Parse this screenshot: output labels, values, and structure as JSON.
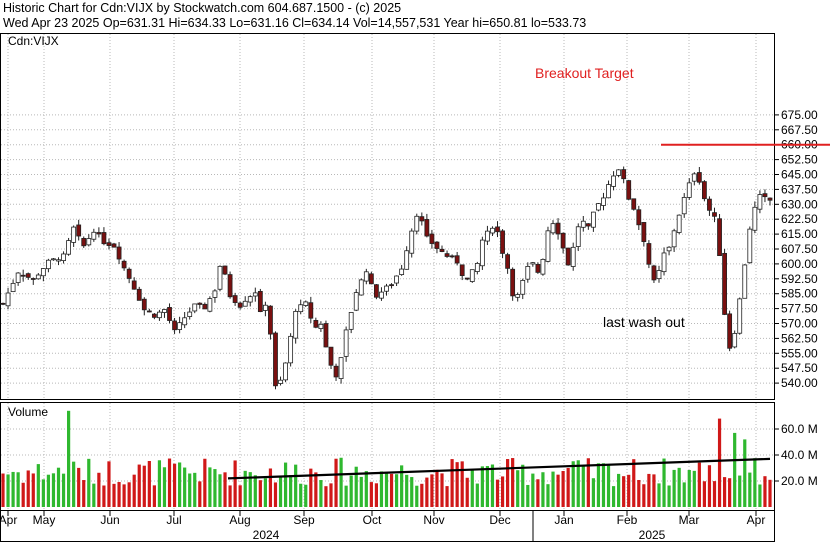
{
  "header": {
    "line1": "Historic Chart for Cdn:VIJX by Stockwatch.com 604.687.1500 - (c) 2025",
    "line2": "Wed Apr 23 2025   Op=631.31   Hi=634.33   Lo=631.16   Cl=634.14   Vol=14,557,531   Year hi=650.81   lo=533.73"
  },
  "colors": {
    "up": "#2fb82f",
    "down": "#d01818",
    "candle_body": "#7a1010",
    "grid": "#b8b8b8",
    "target_line": "#e02020",
    "trend": "#000000"
  },
  "chart_data": [
    {
      "type": "candlestick",
      "symbol_label": "Cdn:VIJX",
      "ylim": [
        532.5,
        680
      ],
      "y_ticks": [
        "675.00",
        "667.50",
        "660.00",
        "652.50",
        "645.00",
        "637.50",
        "630.00",
        "622.50",
        "615.00",
        "607.50",
        "600.00",
        "592.50",
        "585.00",
        "577.50",
        "570.00",
        "562.50",
        "555.00",
        "547.50",
        "540.00"
      ],
      "x_month_labels": [
        "Apr",
        "May",
        "Jun",
        "Jul",
        "Aug",
        "Sep",
        "Oct",
        "Nov",
        "Dec",
        "Jan",
        "Feb",
        "Mar",
        "Apr"
      ],
      "x_year_labels": [
        "2024",
        "2025"
      ],
      "close_path": [
        [
          0,
          580
        ],
        [
          3,
          596
        ],
        [
          6,
          592
        ],
        [
          9,
          601
        ],
        [
          12,
          604
        ],
        [
          14,
          618
        ],
        [
          15,
          613
        ],
        [
          16,
          609
        ],
        [
          18,
          617
        ],
        [
          20,
          611
        ],
        [
          22,
          609
        ],
        [
          24,
          598
        ],
        [
          26,
          588
        ],
        [
          28,
          577
        ],
        [
          30,
          574
        ],
        [
          32,
          577
        ],
        [
          34,
          566
        ],
        [
          36,
          573
        ],
        [
          38,
          579
        ],
        [
          40,
          578
        ],
        [
          42,
          587
        ],
        [
          43,
          599
        ],
        [
          44,
          594
        ],
        [
          45,
          584
        ],
        [
          47,
          579
        ],
        [
          48,
          582
        ],
        [
          50,
          586
        ],
        [
          51,
          575
        ],
        [
          52,
          580
        ],
        [
          53,
          565
        ],
        [
          54,
          538
        ],
        [
          55,
          541
        ],
        [
          56,
          550
        ],
        [
          57,
          563
        ],
        [
          58,
          577
        ],
        [
          60,
          580
        ],
        [
          61,
          573
        ],
        [
          62,
          568
        ],
        [
          63,
          570
        ],
        [
          64,
          558
        ],
        [
          65,
          549
        ],
        [
          66,
          544
        ],
        [
          67,
          552
        ],
        [
          68,
          566
        ],
        [
          70,
          586
        ],
        [
          72,
          597
        ],
        [
          73,
          589
        ],
        [
          74,
          584
        ],
        [
          75,
          586
        ],
        [
          77,
          590
        ],
        [
          79,
          598
        ],
        [
          81,
          617
        ],
        [
          82,
          625
        ],
        [
          83,
          621
        ],
        [
          84,
          613
        ],
        [
          86,
          608
        ],
        [
          88,
          604
        ],
        [
          90,
          601
        ],
        [
          91,
          595
        ],
        [
          92,
          592
        ],
        [
          94,
          600
        ],
        [
          95,
          612
        ],
        [
          97,
          619
        ],
        [
          98,
          616
        ],
        [
          99,
          606
        ],
        [
          100,
          598
        ],
        [
          101,
          585
        ],
        [
          102,
          584
        ],
        [
          103,
          591
        ],
        [
          104,
          598
        ],
        [
          105,
          600
        ],
        [
          106,
          596
        ],
        [
          107,
          603
        ],
        [
          108,
          617
        ],
        [
          109,
          621
        ],
        [
          110,
          616
        ],
        [
          112,
          600
        ],
        [
          113,
          608
        ],
        [
          114,
          619
        ],
        [
          115,
          621
        ],
        [
          116,
          618
        ],
        [
          117,
          625
        ],
        [
          118,
          630
        ],
        [
          119,
          634
        ],
        [
          120,
          640
        ],
        [
          121,
          645
        ],
        [
          122,
          648
        ],
        [
          123,
          642
        ],
        [
          124,
          633
        ],
        [
          125,
          628
        ],
        [
          126,
          620
        ],
        [
          127,
          612
        ],
        [
          128,
          600
        ],
        [
          129,
          591
        ],
        [
          130,
          596
        ],
        [
          131,
          605
        ],
        [
          132,
          608
        ],
        [
          133,
          617
        ],
        [
          134,
          625
        ],
        [
          135,
          633
        ],
        [
          136,
          640
        ],
        [
          137,
          646
        ],
        [
          138,
          642
        ],
        [
          139,
          633
        ],
        [
          140,
          627
        ],
        [
          141,
          623
        ],
        [
          142,
          605
        ],
        [
          143,
          575
        ],
        [
          144,
          558
        ],
        [
          145,
          566
        ],
        [
          146,
          582
        ],
        [
          147,
          600
        ],
        [
          148,
          618
        ],
        [
          149,
          628
        ],
        [
          150,
          634
        ],
        [
          151,
          633
        ],
        [
          152,
          632
        ]
      ],
      "annotations": [
        {
          "text": "Breakout Target",
          "price": 660.0
        },
        {
          "text": "last wash out"
        }
      ]
    },
    {
      "type": "bar",
      "label": "Volume",
      "y_ticks": [
        "60.0 M",
        "40.0 M",
        "20.0 M"
      ],
      "ylim": [
        0,
        80
      ],
      "trendline": [
        [
          0,
          22
        ],
        [
          152,
          37
        ]
      ]
    }
  ]
}
